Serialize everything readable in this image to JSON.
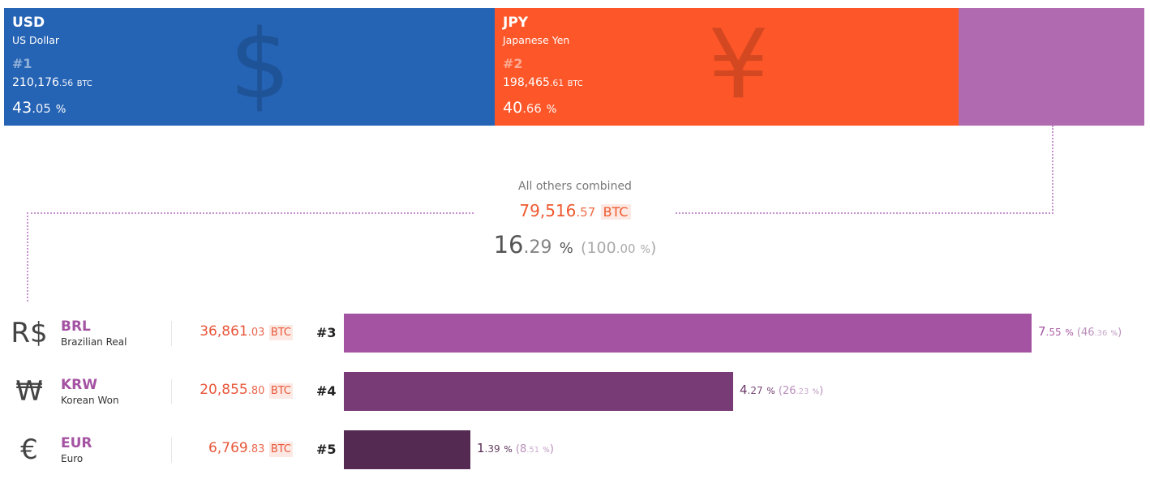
{
  "chart_data": {
    "type": "bar",
    "currency_unit": "BTC",
    "top": [
      {
        "code": "USD",
        "name": "US Dollar",
        "rank": "#1",
        "symbol": "$",
        "btc_int": "210,176",
        "btc_dec": ".56",
        "btc_unit": "BTC",
        "pct_int": "43",
        "pct_dec": ".05",
        "pct_unit": "%",
        "value": 210176.56,
        "share": 43.05,
        "color": "#2563b4"
      },
      {
        "code": "JPY",
        "name": "Japanese Yen",
        "rank": "#2",
        "symbol": "¥",
        "btc_int": "198,465",
        "btc_dec": ".61",
        "btc_unit": "BTC",
        "pct_int": "40",
        "pct_dec": ".66",
        "pct_unit": "%",
        "value": 198465.61,
        "share": 40.66,
        "color": "#fd5628"
      },
      {
        "code": "",
        "name": "",
        "value": 79516.57,
        "share": 16.29,
        "color": "#b06bb0"
      }
    ],
    "others": {
      "label": "All others combined",
      "btc_int": "79,516",
      "btc_dec": ".57",
      "btc_unit": "BTC",
      "pct_int": "16",
      "pct_dec": ".29",
      "pct_unit": "%",
      "paren_open": "(",
      "total_int": "100",
      "total_dec": ".00",
      "total_unit": "%",
      "paren_close": ")"
    },
    "rows": [
      {
        "code": "BRL",
        "name": "Brazilian Real",
        "symbol": "R$",
        "rank": "#3",
        "btc_int": "36,861",
        "btc_dec": ".03",
        "btc_unit": "BTC",
        "pct_int": "7",
        "pct_dec": ".55",
        "pct_unit": "%",
        "sub_open": "(",
        "sub_int": "46",
        "sub_dec": ".36",
        "sub_unit": "%",
        "sub_close": ")",
        "share": 7.55,
        "share_of_others": 46.36,
        "color": "#a453a2",
        "text_color": "#a453a2"
      },
      {
        "code": "KRW",
        "name": "Korean Won",
        "symbol": "₩",
        "rank": "#4",
        "btc_int": "20,855",
        "btc_dec": ".80",
        "btc_unit": "BTC",
        "pct_int": "4",
        "pct_dec": ".27",
        "pct_unit": "%",
        "sub_open": "(",
        "sub_int": "26",
        "sub_dec": ".23",
        "sub_unit": "%",
        "sub_close": ")",
        "share": 4.27,
        "share_of_others": 26.23,
        "color": "#793b76",
        "text_color": "#6b3769"
      },
      {
        "code": "EUR",
        "name": "Euro",
        "symbol": "€",
        "rank": "#5",
        "btc_int": "6,769",
        "btc_dec": ".83",
        "btc_unit": "BTC",
        "pct_int": "1",
        "pct_dec": ".39",
        "pct_unit": "%",
        "sub_open": "(",
        "sub_int": "8",
        "sub_dec": ".51",
        "sub_unit": "%",
        "sub_close": ")",
        "share": 1.39,
        "share_of_others": 8.51,
        "color": "#552a52",
        "text_color": "#552a52"
      }
    ]
  }
}
